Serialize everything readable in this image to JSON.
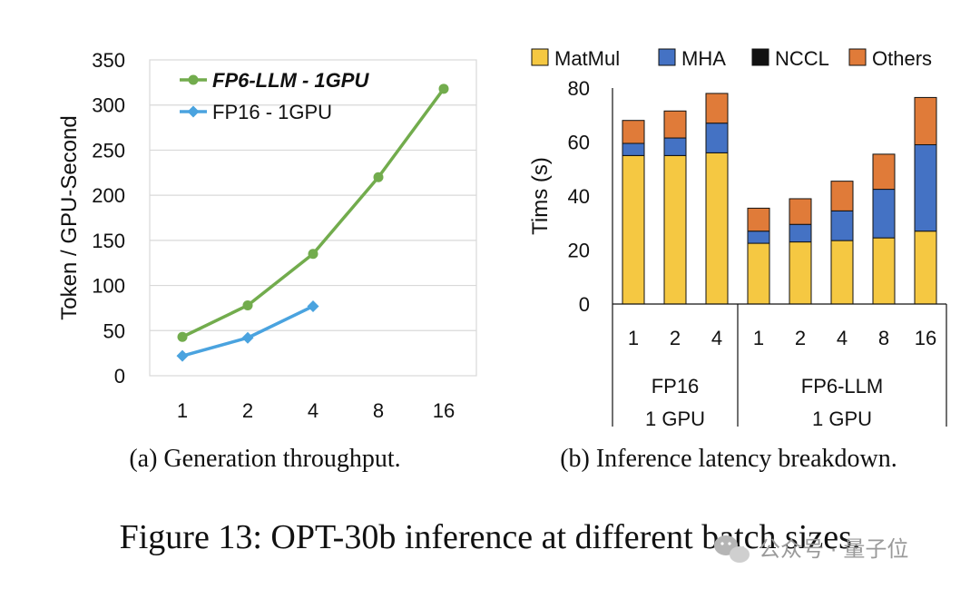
{
  "chart_data": [
    {
      "type": "line",
      "title": "",
      "caption": "(a) Generation throughput.",
      "xlabel": "",
      "ylabel": "Token / GPU-Second",
      "categories": [
        "1",
        "2",
        "4",
        "8",
        "16"
      ],
      "ylim": [
        0,
        350
      ],
      "yticks": [
        "0",
        "50",
        "100",
        "150",
        "200",
        "250",
        "300",
        "350"
      ],
      "grid": true,
      "legend": "top-left",
      "series": [
        {
          "name": "FP6-LLM  - 1GPU",
          "color": "#72ac4d",
          "marker": "circle",
          "values": [
            43,
            78,
            135,
            220,
            318
          ]
        },
        {
          "name": "FP16 - 1GPU",
          "color": "#4aa3df",
          "marker": "diamond",
          "values": [
            22,
            42,
            77,
            null,
            null
          ]
        }
      ]
    },
    {
      "type": "bar",
      "stacked": true,
      "title": "",
      "caption": "(b) Inference latency breakdown.",
      "xlabel": "",
      "ylabel": "Tims (s)",
      "categories": [
        "1",
        "2",
        "4",
        "1",
        "2",
        "4",
        "8",
        "16"
      ],
      "groups": [
        {
          "label": [
            "FP16",
            "1 GPU"
          ],
          "count": 3
        },
        {
          "label": [
            "FP6-LLM",
            "1 GPU"
          ],
          "count": 5
        }
      ],
      "ylim": [
        0,
        80
      ],
      "yticks": [
        "0",
        "20",
        "40",
        "60",
        "80"
      ],
      "grid": false,
      "legend": "top",
      "series": [
        {
          "name": "MatMul",
          "color": "#f5c842",
          "values": [
            55,
            55,
            56,
            22.5,
            23,
            23.5,
            24.5,
            27
          ]
        },
        {
          "name": "MHA",
          "color": "#4472c4",
          "values": [
            4.5,
            6.5,
            11,
            4.5,
            6.5,
            11,
            18,
            32
          ]
        },
        {
          "name": "NCCL",
          "color": "#111111",
          "values": [
            0,
            0,
            0,
            0,
            0,
            0,
            0,
            0
          ]
        },
        {
          "name": "Others",
          "color": "#e07b39",
          "values": [
            8.5,
            10,
            11,
            8.5,
            9.5,
            11,
            13,
            17.5
          ]
        }
      ]
    }
  ],
  "figure_caption": "Figure 13: OPT-30b inference at different batch sizes.",
  "watermark": "公众号 · 量子位"
}
